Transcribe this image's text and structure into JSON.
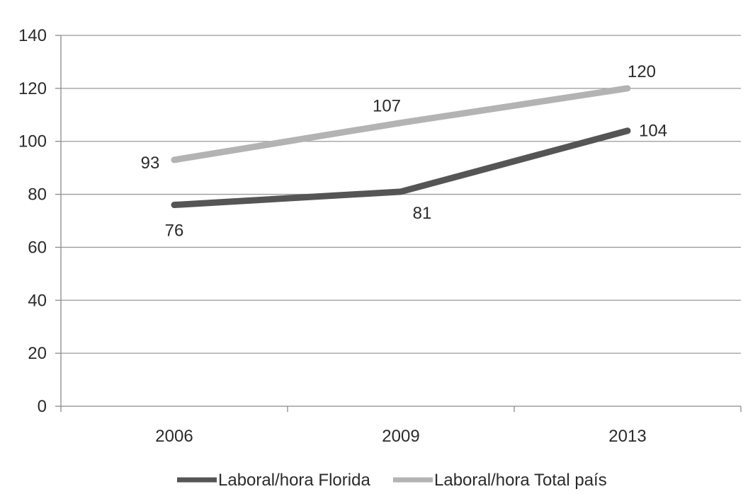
{
  "chart_data": {
    "type": "line",
    "title": "",
    "xlabel": "",
    "ylabel": "",
    "categories": [
      "2006",
      "2009",
      "2013"
    ],
    "ylim": [
      0,
      140
    ],
    "yticks": [
      0,
      20,
      40,
      60,
      80,
      100,
      120,
      140
    ],
    "grid": true,
    "legend_position": "bottom",
    "series": [
      {
        "name": "Laboral/hora  Florida",
        "values": [
          76,
          81,
          104
        ],
        "color": "#555555"
      },
      {
        "name": "Laboral/hora  Total país",
        "values": [
          93,
          107,
          120
        ],
        "color": "#b3b3b3"
      }
    ]
  }
}
